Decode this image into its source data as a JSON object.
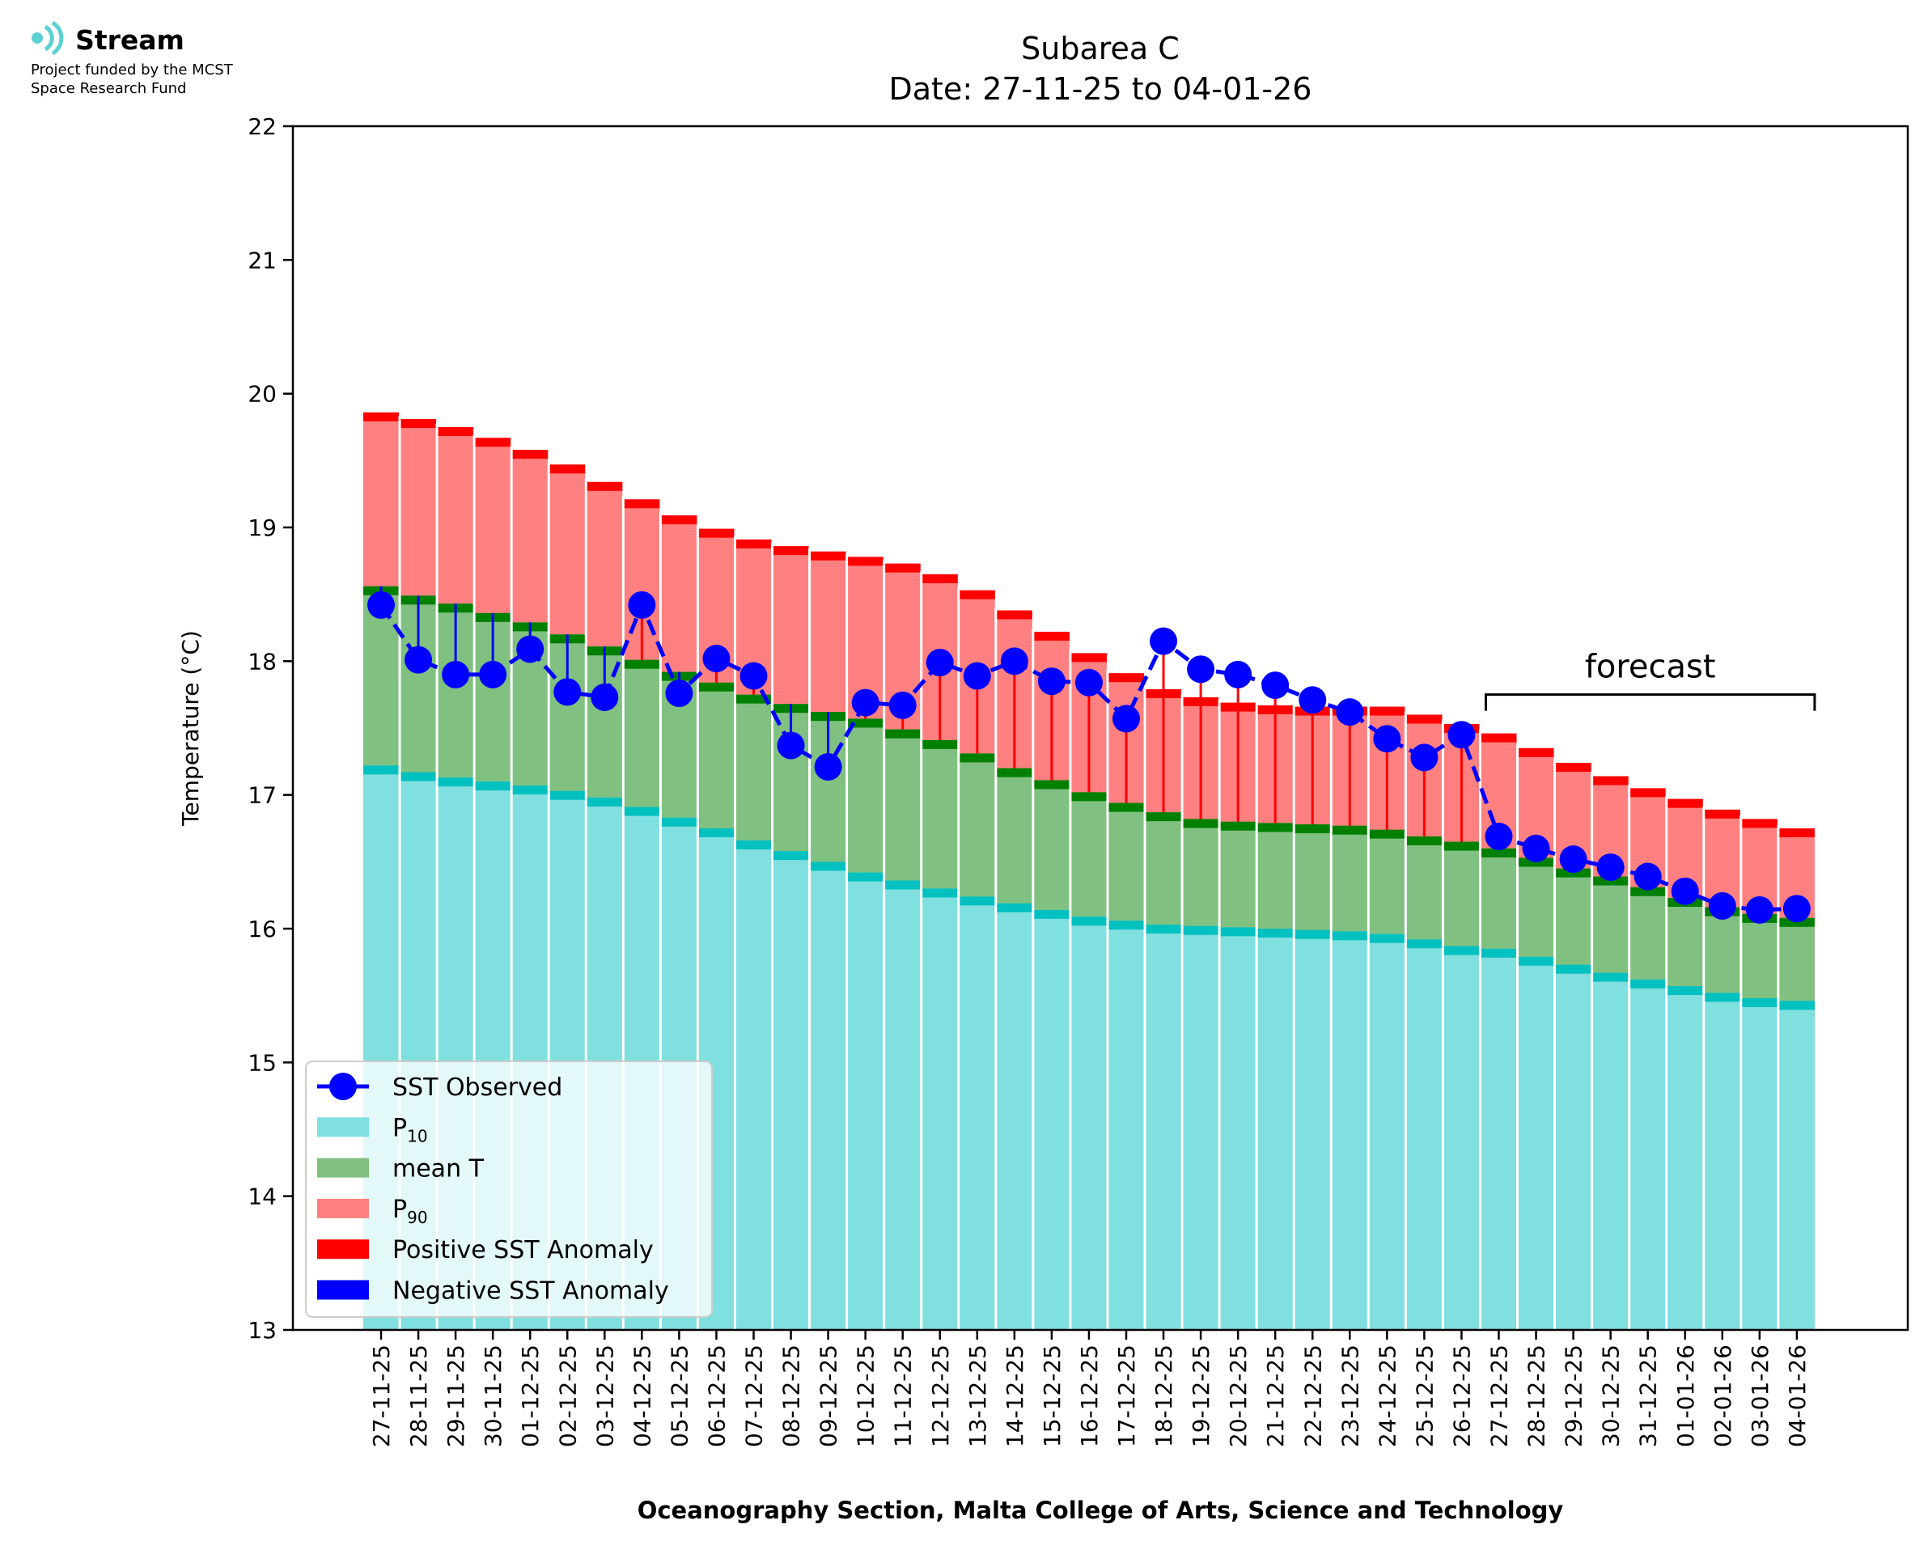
{
  "logo": {
    "name": "Stream",
    "funding_line1": "Project funded by the MCST",
    "funding_line2": "Space Research Fund"
  },
  "chart_data": {
    "type": "bar",
    "title": "Subarea C",
    "subtitle": "Date: 27-11-25 to 04-01-26",
    "xlabel": "Oceanography Section, Malta College of Arts, Science and Technology",
    "ylabel": "Temperature (°C)",
    "ylim": [
      13,
      22
    ],
    "yticks": [
      13,
      14,
      15,
      16,
      17,
      18,
      19,
      20,
      21,
      22
    ],
    "grid": false,
    "legend_position": "lower-left",
    "categories": [
      "27-11-25",
      "28-11-25",
      "29-11-25",
      "30-11-25",
      "01-12-25",
      "02-12-25",
      "03-12-25",
      "04-12-25",
      "05-12-25",
      "06-12-25",
      "07-12-25",
      "08-12-25",
      "09-12-25",
      "10-12-25",
      "11-12-25",
      "12-12-25",
      "13-12-25",
      "14-12-25",
      "15-12-25",
      "16-12-25",
      "17-12-25",
      "18-12-25",
      "19-12-25",
      "20-12-25",
      "21-12-25",
      "22-12-25",
      "23-12-25",
      "24-12-25",
      "25-12-25",
      "26-12-25",
      "27-12-25",
      "28-12-25",
      "29-12-25",
      "30-12-25",
      "31-12-25",
      "01-01-26",
      "02-01-26",
      "03-01-26",
      "04-01-26"
    ],
    "series": [
      {
        "name": "P10",
        "label_base": "P",
        "label_sub": "10",
        "color": "#80dfdf",
        "edge_color": "#00c0c0",
        "values": [
          17.22,
          17.17,
          17.13,
          17.1,
          17.07,
          17.03,
          16.98,
          16.91,
          16.83,
          16.75,
          16.66,
          16.58,
          16.5,
          16.42,
          16.36,
          16.3,
          16.24,
          16.19,
          16.14,
          16.09,
          16.06,
          16.03,
          16.02,
          16.01,
          16.0,
          15.99,
          15.98,
          15.96,
          15.92,
          15.87,
          15.85,
          15.79,
          15.73,
          15.67,
          15.62,
          15.57,
          15.52,
          15.48,
          15.46
        ]
      },
      {
        "name": "mean T",
        "label_base": "mean T",
        "label_sub": "",
        "color": "#80c080",
        "edge_color": "#008000",
        "values": [
          18.56,
          18.49,
          18.43,
          18.36,
          18.29,
          18.2,
          18.11,
          18.01,
          17.92,
          17.84,
          17.75,
          17.68,
          17.62,
          17.57,
          17.49,
          17.41,
          17.31,
          17.2,
          17.11,
          17.02,
          16.94,
          16.87,
          16.82,
          16.8,
          16.79,
          16.78,
          16.77,
          16.74,
          16.69,
          16.65,
          16.6,
          16.53,
          16.45,
          16.39,
          16.31,
          16.23,
          16.16,
          16.11,
          16.08
        ]
      },
      {
        "name": "P90",
        "label_base": "P",
        "label_sub": "90",
        "color": "#ff8080",
        "edge_color": "#ff0000",
        "values": [
          19.86,
          19.81,
          19.75,
          19.67,
          19.58,
          19.47,
          19.34,
          19.21,
          19.09,
          18.99,
          18.91,
          18.86,
          18.82,
          18.78,
          18.73,
          18.65,
          18.53,
          18.38,
          18.22,
          18.06,
          17.91,
          17.79,
          17.73,
          17.69,
          17.67,
          17.66,
          17.66,
          17.66,
          17.6,
          17.53,
          17.46,
          17.35,
          17.24,
          17.14,
          17.05,
          16.97,
          16.89,
          16.82,
          16.75
        ]
      },
      {
        "name": "SST Observed",
        "label_base": "SST Observed",
        "label_sub": "",
        "color": "#0000ff",
        "values": [
          18.42,
          18.01,
          17.9,
          17.9,
          18.09,
          17.77,
          17.73,
          18.42,
          17.76,
          18.02,
          17.89,
          17.37,
          17.21,
          17.69,
          17.67,
          17.99,
          17.89,
          18.0,
          17.85,
          17.84,
          17.57,
          18.15,
          17.94,
          17.9,
          17.82,
          17.71,
          17.62,
          17.42,
          17.28,
          17.45,
          16.69,
          16.6,
          16.52,
          16.46,
          16.39,
          16.28,
          16.17,
          16.14,
          16.15
        ]
      }
    ],
    "anomaly_legend": [
      {
        "name": "Positive SST Anomaly",
        "color": "#ff0000"
      },
      {
        "name": "Negative SST Anomaly",
        "color": "#0000ff"
      }
    ],
    "annotation": {
      "text": "forecast",
      "start": "27-12-25",
      "end": "04-01-26",
      "y": 17.75
    }
  }
}
